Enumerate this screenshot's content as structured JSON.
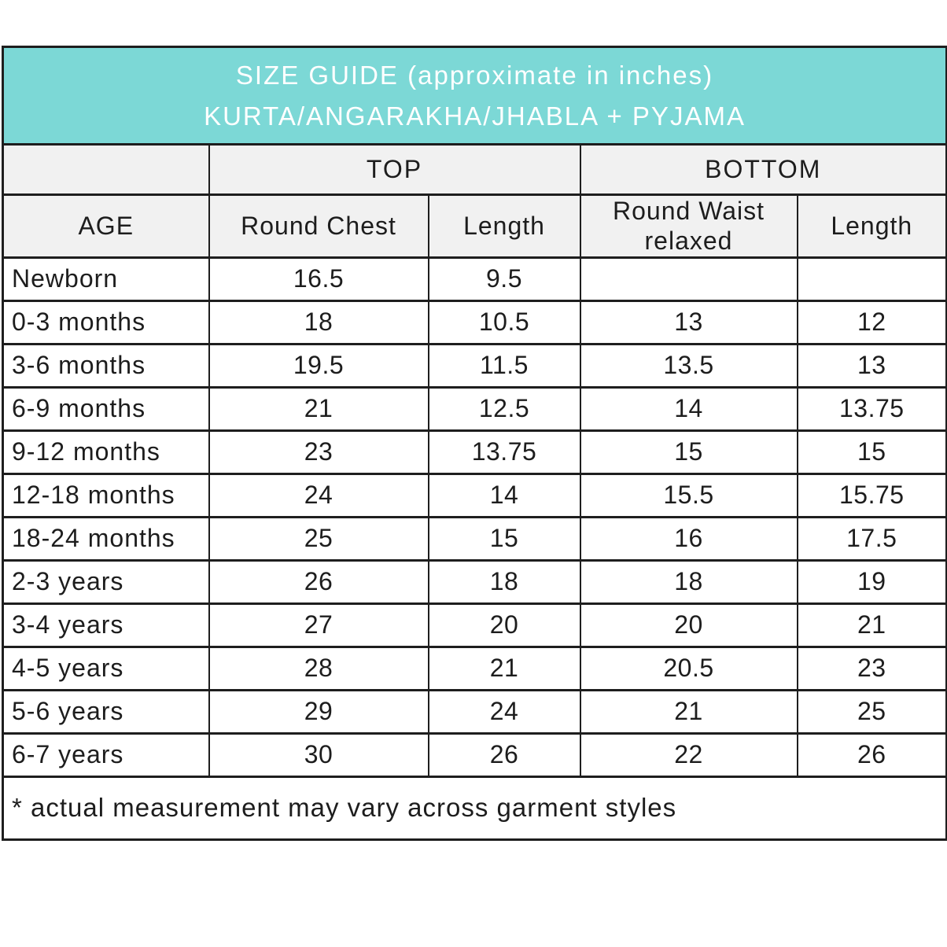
{
  "title": {
    "line1": "SIZE GUIDE (approximate in inches)",
    "line2": "KURTA/ANGARAKHA/JHABLA + PYJAMA"
  },
  "group_headers": {
    "top": "TOP",
    "bottom": "BOTTOM"
  },
  "columns": [
    "AGE",
    "Round Chest",
    "Length",
    "Round Waist relaxed",
    "Length"
  ],
  "rows": [
    {
      "age": "Newborn",
      "round_chest": "16.5",
      "top_length": "9.5",
      "round_waist": "",
      "bottom_length": ""
    },
    {
      "age": "0-3 months",
      "round_chest": "18",
      "top_length": "10.5",
      "round_waist": "13",
      "bottom_length": "12"
    },
    {
      "age": "3-6 months",
      "round_chest": "19.5",
      "top_length": "11.5",
      "round_waist": "13.5",
      "bottom_length": "13"
    },
    {
      "age": "6-9 months",
      "round_chest": "21",
      "top_length": "12.5",
      "round_waist": "14",
      "bottom_length": "13.75"
    },
    {
      "age": "9-12 months",
      "round_chest": "23",
      "top_length": "13.75",
      "round_waist": "15",
      "bottom_length": "15"
    },
    {
      "age": "12-18 months",
      "round_chest": "24",
      "top_length": "14",
      "round_waist": "15.5",
      "bottom_length": "15.75"
    },
    {
      "age": "18-24 months",
      "round_chest": "25",
      "top_length": "15",
      "round_waist": "16",
      "bottom_length": "17.5"
    },
    {
      "age": "2-3 years",
      "round_chest": "26",
      "top_length": "18",
      "round_waist": "18",
      "bottom_length": "19"
    },
    {
      "age": "3-4 years",
      "round_chest": "27",
      "top_length": "20",
      "round_waist": "20",
      "bottom_length": "21"
    },
    {
      "age": "4-5 years",
      "round_chest": "28",
      "top_length": "21",
      "round_waist": "20.5",
      "bottom_length": "23"
    },
    {
      "age": "5-6 years",
      "round_chest": "29",
      "top_length": "24",
      "round_waist": "21",
      "bottom_length": "25"
    },
    {
      "age": "6-7 years",
      "round_chest": "30",
      "top_length": "26",
      "round_waist": "22",
      "bottom_length": "26"
    }
  ],
  "footnote": "* actual measurement may vary across garment styles",
  "colors": {
    "banner_bg": "#7cd8d6",
    "banner_text": "#ffffff",
    "header_bg": "#f1f1f1",
    "border": "#1e1e1e",
    "text": "#1d1d1d"
  }
}
